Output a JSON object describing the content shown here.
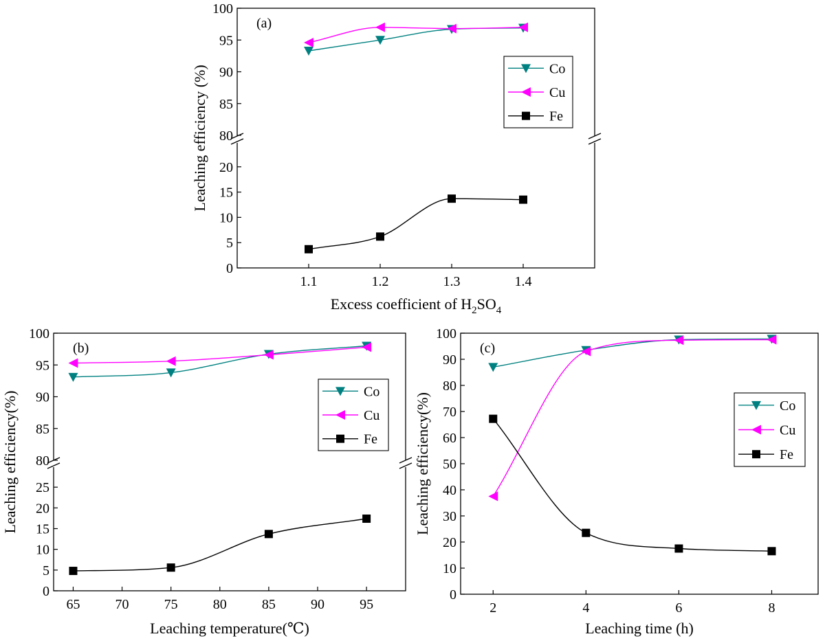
{
  "colors": {
    "Co": "#008080",
    "Cu": "#ff00ff",
    "Fe": "#000000"
  },
  "chart_data": [
    {
      "type": "line",
      "panel_label": "(a)",
      "x": [
        1.1,
        1.2,
        1.3,
        1.4
      ],
      "x_ticks": [
        1.1,
        1.2,
        1.3,
        1.4
      ],
      "x_tick_labels": [
        "1.1",
        "1.2",
        "1.3",
        "1.4"
      ],
      "xlim": [
        1.0,
        1.5
      ],
      "xlabel_main": "Excess coefficient of H",
      "xlabel_sub1": "2",
      "xlabel_mid": "SO",
      "xlabel_sub2": "4",
      "ylabel": "Leaching efficiency (%)",
      "y_break": {
        "lower": [
          0,
          25
        ],
        "upper": [
          80,
          100
        ],
        "lower_ticks": [
          0,
          5,
          10,
          15,
          20
        ],
        "upper_ticks": [
          80,
          85,
          90,
          95,
          100
        ]
      },
      "legend_position": "right",
      "series": [
        {
          "name": "Co",
          "marker": "triangle-down",
          "values": [
            93.3,
            95.0,
            96.7,
            96.9
          ]
        },
        {
          "name": "Cu",
          "marker": "triangle-left",
          "values": [
            94.6,
            97.0,
            96.8,
            97.0
          ]
        },
        {
          "name": "Fe",
          "marker": "square",
          "values": [
            3.7,
            6.2,
            13.7,
            13.5
          ]
        }
      ]
    },
    {
      "type": "line",
      "panel_label": "(b)",
      "x": [
        65,
        75,
        85,
        95
      ],
      "x_ticks": [
        65,
        70,
        75,
        80,
        85,
        90,
        95
      ],
      "x_tick_labels": [
        "65",
        "70",
        "75",
        "80",
        "85",
        "90",
        "95"
      ],
      "xlim": [
        63,
        99
      ],
      "xlabel": "Leaching temperature(℃)",
      "ylabel": "Leaching efficiency(%)",
      "y_break": {
        "lower": [
          0,
          30
        ],
        "upper": [
          80,
          100
        ],
        "lower_ticks": [
          0,
          5,
          10,
          15,
          20,
          25
        ],
        "upper_ticks": [
          80,
          85,
          90,
          95,
          100
        ]
      },
      "legend_position": "right",
      "series": [
        {
          "name": "Co",
          "marker": "triangle-down",
          "values": [
            93.1,
            93.8,
            96.7,
            98.0
          ]
        },
        {
          "name": "Cu",
          "marker": "triangle-left",
          "values": [
            95.3,
            95.6,
            96.6,
            97.8
          ]
        },
        {
          "name": "Fe",
          "marker": "square",
          "values": [
            4.8,
            5.6,
            13.7,
            17.4
          ]
        }
      ]
    },
    {
      "type": "line",
      "panel_label": "(c)",
      "x": [
        2,
        4,
        6,
        8
      ],
      "x_ticks": [
        2,
        4,
        6,
        8
      ],
      "x_tick_labels": [
        "2",
        "4",
        "6",
        "8"
      ],
      "xlim": [
        1.3,
        9.0
      ],
      "xlabel": "Leaching time (h)",
      "ylabel": "Leaching efficiency(%)",
      "ylim": [
        0,
        100
      ],
      "y_ticks": [
        0,
        10,
        20,
        30,
        40,
        50,
        60,
        70,
        80,
        90,
        100
      ],
      "legend_position": "right",
      "series": [
        {
          "name": "Co",
          "marker": "triangle-down",
          "values": [
            87.0,
            93.5,
            97.5,
            97.8
          ]
        },
        {
          "name": "Cu",
          "marker": "triangle-left",
          "values": [
            37.5,
            93.0,
            97.3,
            97.5
          ]
        },
        {
          "name": "Fe",
          "marker": "square",
          "values": [
            67.2,
            23.5,
            17.5,
            16.5
          ]
        }
      ]
    }
  ]
}
